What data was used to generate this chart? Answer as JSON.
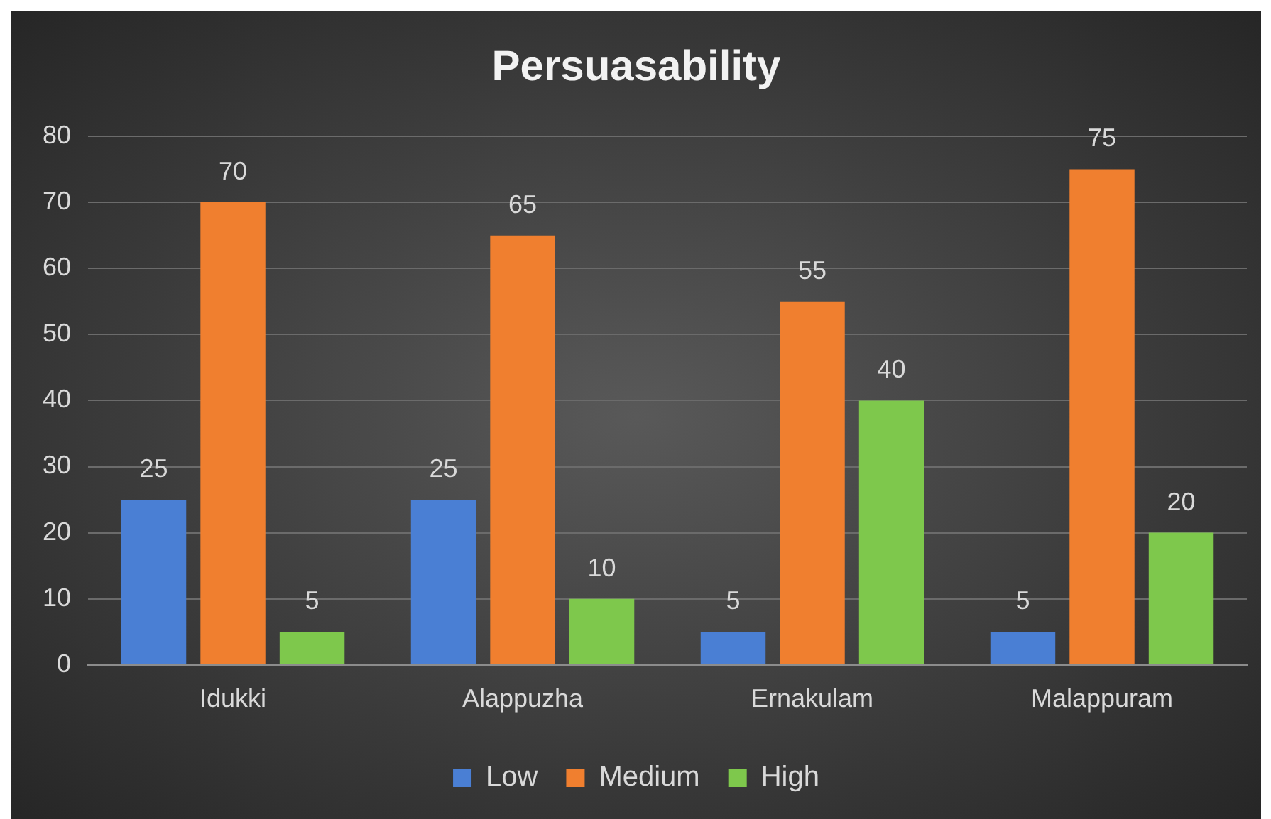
{
  "chart_data": {
    "type": "bar",
    "title": "Persuasability",
    "categories": [
      "Idukki",
      "Alappuzha",
      "Ernakulam",
      "Malappuram"
    ],
    "series": [
      {
        "name": "Low",
        "color": "#4a7fd4",
        "values": [
          25,
          25,
          5,
          5
        ]
      },
      {
        "name": "Medium",
        "color": "#f07f2f",
        "values": [
          70,
          65,
          55,
          75
        ]
      },
      {
        "name": "High",
        "color": "#7ec84c",
        "values": [
          5,
          10,
          40,
          20
        ]
      }
    ],
    "ylim": [
      0,
      80
    ],
    "yticks": [
      0,
      10,
      20,
      30,
      40,
      50,
      60,
      70,
      80
    ],
    "grid": "y",
    "legend": "bottom",
    "data_labels": true
  }
}
